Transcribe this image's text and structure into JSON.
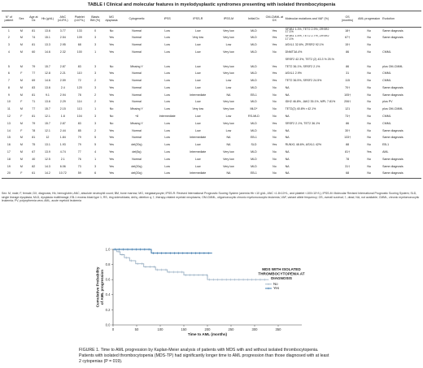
{
  "table": {
    "caption": "TABLE I     Clinical and molecular features in myelodysplastic syndromes presenting with isolated thrombocytopenia",
    "headers": [
      "N° of patient",
      "Sex",
      "Age at Dx",
      "Hb (g/dL)",
      "ANC (x10⁹/L)",
      "Platelet (x10⁹/L)",
      "Blasts BM (%)",
      "MG dysplasia",
      "Cytogenetic",
      "IPSS",
      "IPSS-R",
      "IPSS-M",
      "Initial Dx",
      "OM-CMML at DX",
      "Molecular mutations and VAF (%)",
      "OS (months)",
      "AML progression",
      "Evolution"
    ],
    "rows": [
      [
        "1",
        "M",
        "81",
        "13.6",
        "3.77",
        "133",
        "0",
        "No",
        "Normal",
        "Low",
        "Low",
        "Very low",
        "MLD",
        "Yes",
        "SF3B1 1.3%, TET2 2.9%, ZRSR2 17.1%",
        "18†",
        "No",
        "Same diagnosis"
      ],
      [
        "2",
        "M",
        "74",
        "15.1",
        "2.54",
        "109",
        "3",
        "Yes",
        "Normal",
        "Low",
        "Very low",
        "Very low",
        "MLD",
        "Yes",
        "SF3B1 1.5%, TET2 2.7%, ZRSR2 17.1%",
        "67†",
        "No",
        "Same diagnosis"
      ],
      [
        "3",
        "M",
        "81",
        "13.3",
        "2.95",
        "68",
        "3",
        "Yes",
        "Normal",
        "Low",
        "Low",
        "Low",
        "MLD",
        "Yes",
        "ASXL1 32.6%, ZRSR2 92.1%",
        "15†",
        "No",
        ""
      ],
      [
        "4",
        "M",
        "60",
        "14.6",
        "2.32",
        "100",
        "1",
        "Yes",
        "Normal",
        "Low",
        "Low",
        "Very low",
        "MLD",
        "No",
        "DNMT3A 4%",
        "86",
        "No",
        "CMML"
      ],
      [
        "",
        "",
        "",
        "",
        "",
        "",
        "",
        "",
        "",
        "",
        "",
        "",
        "",
        "",
        "SRSF2 42.3%, TET2 (2) 43.3 % 25.%",
        "",
        "",
        ""
      ],
      [
        "5",
        "M",
        "79",
        "15.7",
        "2.87",
        "83",
        "3",
        "No",
        "Missing Y",
        "Low",
        "Low",
        "Very low",
        "MLD",
        "Yes",
        "TET2 36.1%, SRSF2 2.1%",
        "86",
        "No",
        "plus OM-CMML"
      ],
      [
        "6",
        "F",
        "77",
        "12.8",
        "2.21",
        "110",
        "3",
        "Yes",
        "Normal",
        "Low",
        "Low",
        "Very low",
        "MLD",
        "Yes",
        "ASXL1 2.9%",
        "31",
        "No",
        "CMML"
      ],
      [
        "7",
        "M",
        "69",
        "14.6",
        "2.59",
        "72",
        "2",
        "Yes",
        "Normal",
        "Low",
        "Low",
        "Low",
        "MLD",
        "Yes",
        "TET2 36.5%, SRSF2 24.5%",
        "115",
        "No",
        "CMML"
      ],
      [
        "8",
        "M",
        "83",
        "13.6",
        "2.4",
        "120",
        "3",
        "Yes",
        "Normal",
        "Low",
        "Low",
        "Low",
        "MLD",
        "No",
        "NA",
        "70†",
        "No",
        "Same diagnosis"
      ],
      [
        "9",
        "M",
        "81",
        "9.1",
        "2.94",
        "78",
        "2",
        "Yes",
        "Normal",
        "Low",
        "Intermediate",
        "NA",
        "EB-1",
        "No",
        "NA",
        "105†",
        "No",
        "Same diagnosis"
      ],
      [
        "10",
        "F",
        "71",
        "13.6",
        "2.29",
        "114",
        "2",
        "Yes",
        "Normal",
        "Low",
        "Low",
        "Very low",
        "MLD",
        "No",
        "IDH2 46.8%, JAK2 35.1%, MPL 7.81%",
        "206†",
        "No",
        "plus PV"
      ],
      [
        "11",
        "M",
        "77",
        "15.7",
        "2.15",
        "113",
        "1",
        "No",
        "Missing Y",
        "Low",
        "Very low",
        "Very low",
        "MLD*",
        "No",
        "TET2(2) 40.8% r 42.1%",
        "121",
        "No",
        "plus OM-CMML"
      ],
      [
        "12",
        "F",
        "81",
        "12.1",
        "1.8",
        "104",
        "3",
        "No",
        "+8",
        "Intermediate",
        "Low",
        "Low",
        "RS-MLD",
        "No",
        "NA",
        "73†",
        "No",
        "CMML"
      ],
      [
        "13",
        "M",
        "79",
        "15.7",
        "2.87",
        "83",
        "3",
        "No",
        "Missing Y",
        "Low",
        "Low",
        "Very low",
        "MLD",
        "Yes",
        "SRSF2 2.1%, TET2 36.1%",
        "86",
        "No",
        "CMML"
      ],
      [
        "14",
        "F",
        "78",
        "12.1",
        "2.44",
        "85",
        "2",
        "Yes",
        "Normal",
        "Low",
        "Low",
        "Low",
        "MLD",
        "No",
        "NA",
        "30†",
        "No",
        "Same diagnosis"
      ],
      [
        "15",
        "M",
        "81",
        "12",
        "1.84",
        "79",
        "5",
        "Yes",
        "Normal",
        "Low",
        "Intermediate",
        "NA",
        "EB-1",
        "No",
        "NA",
        "133†",
        "No",
        "Same diagnosis"
      ],
      [
        "16",
        "M",
        "75",
        "13.1",
        "1.93",
        "79",
        "5",
        "Yes",
        "del(20q)",
        "Low",
        "Low",
        "NA",
        "SLD",
        "Yes",
        "RUNX1 48.6%, ASXL1 42%",
        "88",
        "No",
        "EB-1"
      ],
      [
        "17",
        "M",
        "67",
        "13.9",
        "4.74",
        "77",
        "4",
        "Yes",
        "del(5q)",
        "Low",
        "Intermediate",
        "Very low",
        "MLD",
        "No",
        "NA",
        "81†",
        "Yes",
        "AML"
      ],
      [
        "18",
        "M",
        "40",
        "12.5",
        "2.1",
        "76",
        "1",
        "Yes",
        "Normal",
        "Low",
        "Low",
        "Very low",
        "MLD",
        "No",
        "NA",
        "78",
        "No",
        "Same diagnosis"
      ],
      [
        "19",
        "M",
        "82",
        "14.3",
        "6.06",
        "73",
        "3",
        "Yes",
        "del(20q)",
        "Low",
        "Low",
        "Very low",
        "MLD",
        "No",
        "NA",
        "31†",
        "No",
        "Same diagnosis"
      ],
      [
        "20",
        "F",
        "61",
        "14.2",
        "10.72",
        "59",
        "6",
        "Yes",
        "del(20q)",
        "Low",
        "Intermediate",
        "NA",
        "EB-1",
        "No",
        "NA",
        "68",
        "No",
        "Same diagnosis"
      ]
    ],
    "footnote": "Sex: M, male; F, female; DX, diagnosis; Hb, hemoglobin; ANC, absolute neutrophil count; BM, bone marrow; MG, megakaryocyte; IPSS-R: Revised International Prognostic Scoring System (anemia Hb <10 g/dL, ANC <1.8×10⁹/L, and platelet <100×10⁹/L); IPSS-M: Molecular Revised International Prognostic Scoring System; SLD, single lineage dysplasia; MLD, dysplasia multilineage; EB-1 excess blast type 1; RS, ring sideroblasts; del/q, deletion q; †, therapy-related myeloid neoplasms; OM-CMML, oligomonocytic chronic myelomonocytic leukemia; VAF, variant allele frequency; OS, overall survival; †, dead; NA, not available; CMML, chronic myelomonocytic leukemia; PV, polycythemia vera; AML, acute myeloid leukemia"
  },
  "figure": {
    "caption": "FIGURE 1. Time to AML progression by Kaplan-Meier analysis of patients with MDS with and without isolated thrombocytopenia. Patients with isolated thrombocytopenia (MDS-TP) had significantly longer time to AML progression than those diagnosed with at least 2 cytopenias (P = 019)."
  },
  "chart_data": {
    "type": "line",
    "title": "MDS WITH ISOLATED THROMBOCYTOPENIA AT DIAGNOSIS",
    "xlabel": "Time to AML (months)",
    "ylabel": "Cumulative Probability of AML progression",
    "xlim": [
      0,
      400
    ],
    "ylim": [
      0,
      1.0
    ],
    "x_ticks": [
      "0",
      "50",
      "100",
      "150",
      "200",
      "250",
      "300",
      "350"
    ],
    "y_ticks": [
      "0.0",
      "0.2",
      "0.4",
      "0.6",
      "0.8",
      "1.0"
    ],
    "legend_position": "right",
    "series": [
      {
        "name": "No",
        "color": "#9ab0c4",
        "x": [
          0,
          8,
          8,
          15,
          15,
          24,
          24,
          35,
          35,
          48,
          48,
          65,
          65,
          90,
          90,
          115,
          115,
          150,
          150,
          200,
          200,
          330
        ],
        "y": [
          1.0,
          1.0,
          0.97,
          0.97,
          0.93,
          0.93,
          0.89,
          0.89,
          0.85,
          0.85,
          0.81,
          0.81,
          0.77,
          0.77,
          0.73,
          0.73,
          0.7,
          0.7,
          0.66,
          0.66,
          0.6,
          0.6
        ]
      },
      {
        "name": "Yes",
        "color": "#2e6fa6",
        "x": [
          0,
          81,
          81,
          210
        ],
        "y": [
          1.0,
          1.0,
          0.95,
          0.95
        ]
      }
    ]
  }
}
